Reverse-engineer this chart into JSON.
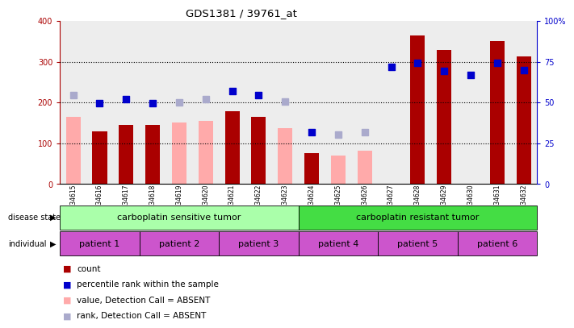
{
  "title": "GDS1381 / 39761_at",
  "samples": [
    "GSM34615",
    "GSM34616",
    "GSM34617",
    "GSM34618",
    "GSM34619",
    "GSM34620",
    "GSM34621",
    "GSM34622",
    "GSM34623",
    "GSM34624",
    "GSM34625",
    "GSM34626",
    "GSM34627",
    "GSM34628",
    "GSM34629",
    "GSM34630",
    "GSM34631",
    "GSM34632"
  ],
  "count_values": [
    null,
    130,
    145,
    145,
    null,
    null,
    178,
    165,
    null,
    75,
    null,
    null,
    null,
    365,
    328,
    null,
    350,
    312
  ],
  "count_absent_values": [
    165,
    null,
    null,
    null,
    150,
    155,
    null,
    null,
    138,
    null,
    70,
    82,
    null,
    null,
    null,
    null,
    null,
    null
  ],
  "rank_values": [
    null,
    198,
    208,
    198,
    null,
    null,
    228,
    218,
    null,
    128,
    null,
    null,
    288,
    298,
    278,
    268,
    298,
    280
  ],
  "rank_absent_values": [
    218,
    null,
    null,
    null,
    200,
    208,
    null,
    null,
    202,
    null,
    122,
    128,
    null,
    null,
    null,
    null,
    null,
    null
  ],
  "ylim_left": [
    0,
    400
  ],
  "ylim_right": [
    0,
    100
  ],
  "yticks_left": [
    0,
    100,
    200,
    300,
    400
  ],
  "ytick_labels_left": [
    "0",
    "100",
    "200",
    "300",
    "400"
  ],
  "yticks_right": [
    0,
    25,
    50,
    75,
    100
  ],
  "ytick_labels_right": [
    "0",
    "25",
    "50",
    "75",
    "100%"
  ],
  "color_count": "#aa0000",
  "color_rank": "#0000cc",
  "color_count_absent": "#ffaaaa",
  "color_rank_absent": "#aaaacc",
  "col_bg_color": "#cccccc",
  "disease_state_labels": [
    "carboplatin sensitive tumor",
    "carboplatin resistant tumor"
  ],
  "disease_state_colors": [
    "#aaffaa",
    "#44dd44"
  ],
  "disease_ranges": [
    [
      0,
      9
    ],
    [
      9,
      18
    ]
  ],
  "patient_labels": [
    "patient 1",
    "patient 2",
    "patient 3",
    "patient 4",
    "patient 5",
    "patient 6"
  ],
  "patient_color": "#cc55cc",
  "patient_ranges": [
    [
      0,
      3
    ],
    [
      3,
      6
    ],
    [
      6,
      9
    ],
    [
      9,
      12
    ],
    [
      12,
      15
    ],
    [
      15,
      18
    ]
  ],
  "legend_items": [
    {
      "label": "count",
      "color": "#aa0000"
    },
    {
      "label": "percentile rank within the sample",
      "color": "#0000cc"
    },
    {
      "label": "value, Detection Call = ABSENT",
      "color": "#ffaaaa"
    },
    {
      "label": "rank, Detection Call = ABSENT",
      "color": "#aaaacc"
    }
  ]
}
